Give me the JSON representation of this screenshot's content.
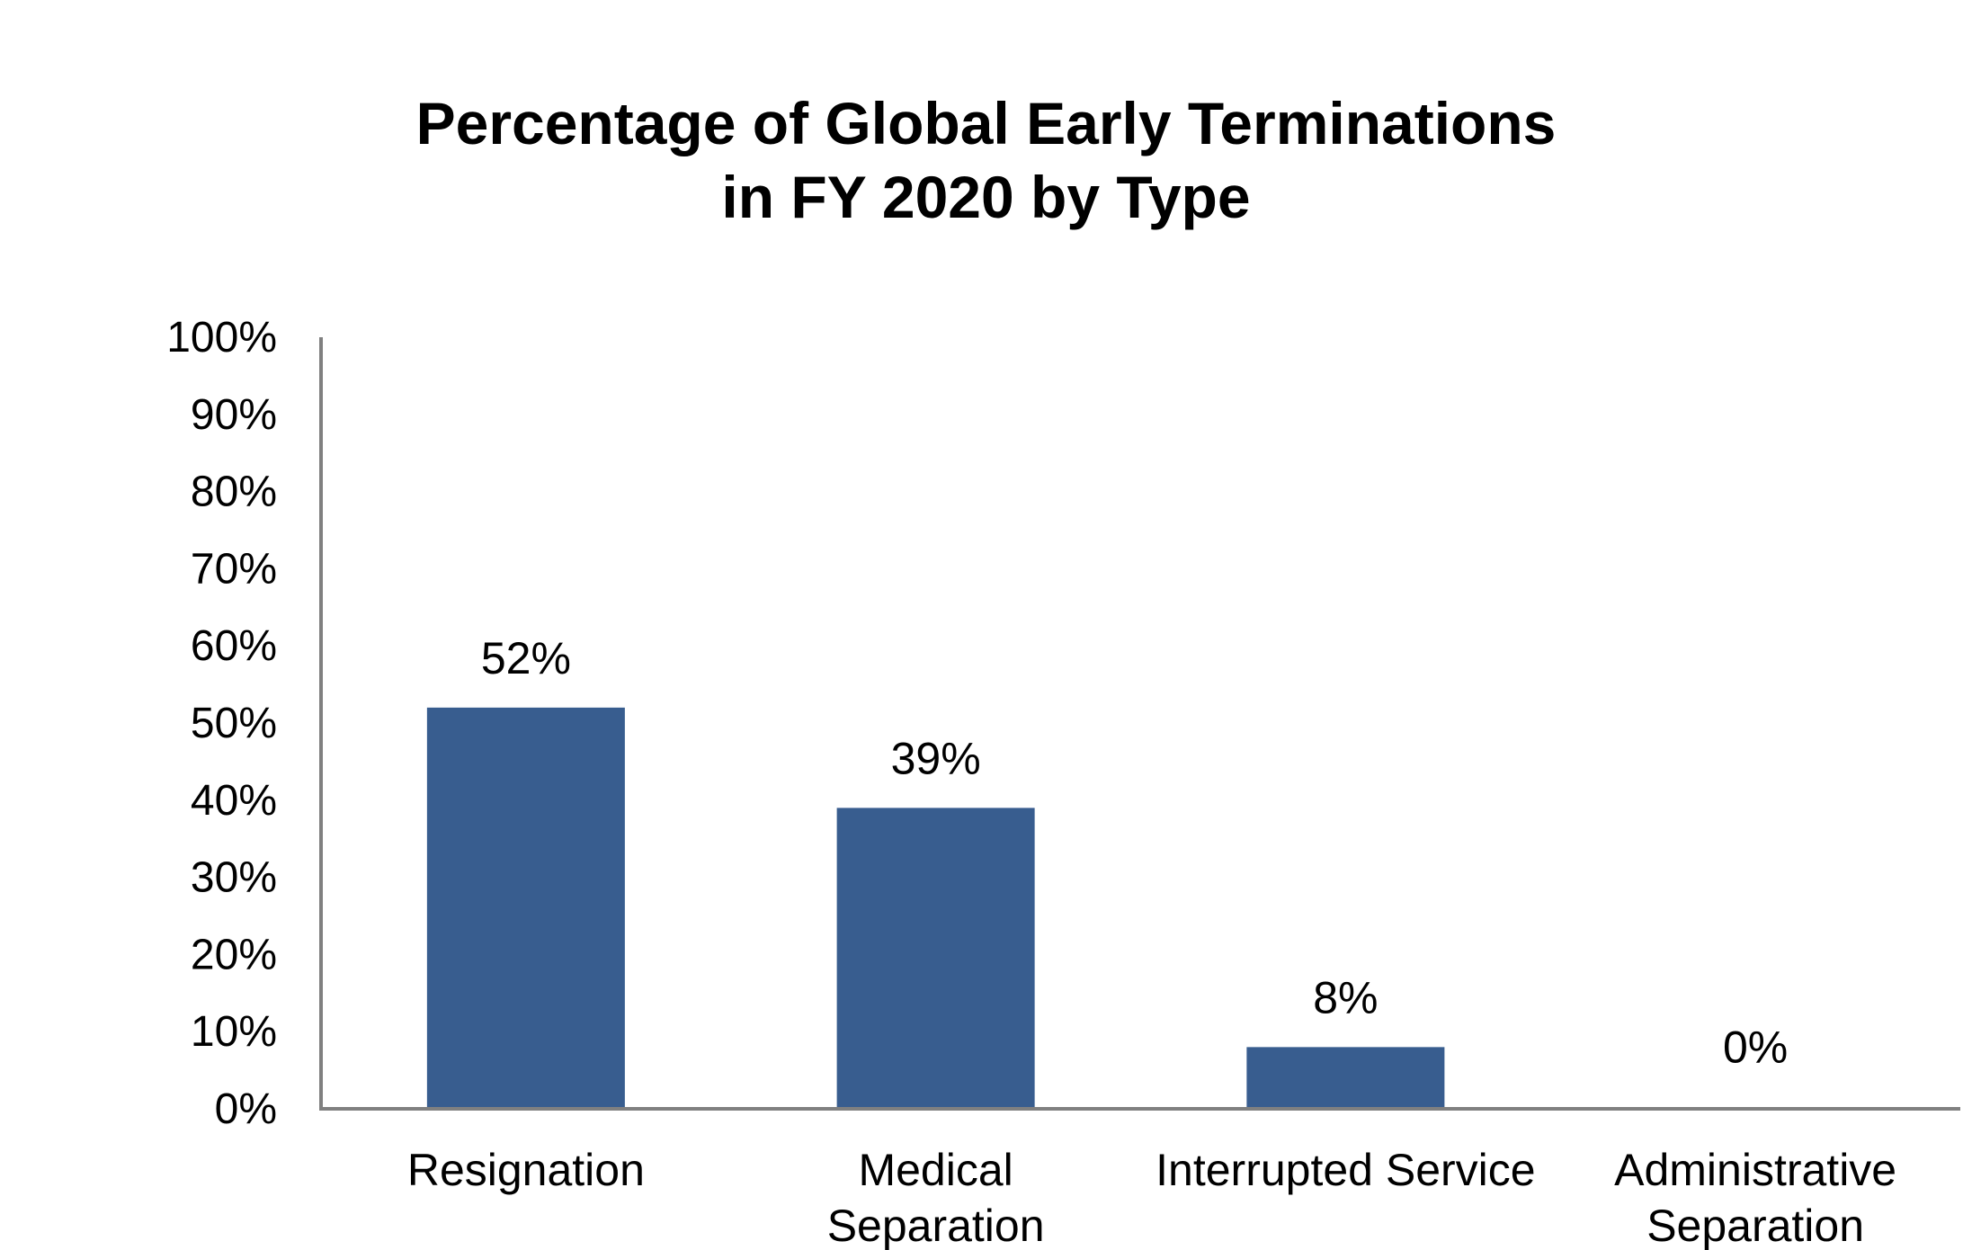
{
  "chart_data": {
    "type": "bar",
    "title_lines": [
      "Percentage of Global Early Terminations",
      "in FY 2020 by Type"
    ],
    "categories": [
      [
        "Resignation"
      ],
      [
        "Medical",
        "Separation"
      ],
      [
        "Interrupted Service"
      ],
      [
        "Administrative",
        "Separation"
      ]
    ],
    "values": [
      52,
      39,
      8,
      0
    ],
    "data_labels": [
      "52%",
      "39%",
      "8%",
      "0%"
    ],
    "ylim": [
      0,
      100
    ],
    "y_ticks": [
      0,
      10,
      20,
      30,
      40,
      50,
      60,
      70,
      80,
      90,
      100
    ],
    "y_tick_labels": [
      "0%",
      "10%",
      "20%",
      "30%",
      "40%",
      "50%",
      "60%",
      "70%",
      "80%",
      "90%",
      "100%"
    ],
    "grid": false,
    "legend": "none",
    "colors": {
      "bar": "#385D8F",
      "axis": "#808080"
    }
  }
}
